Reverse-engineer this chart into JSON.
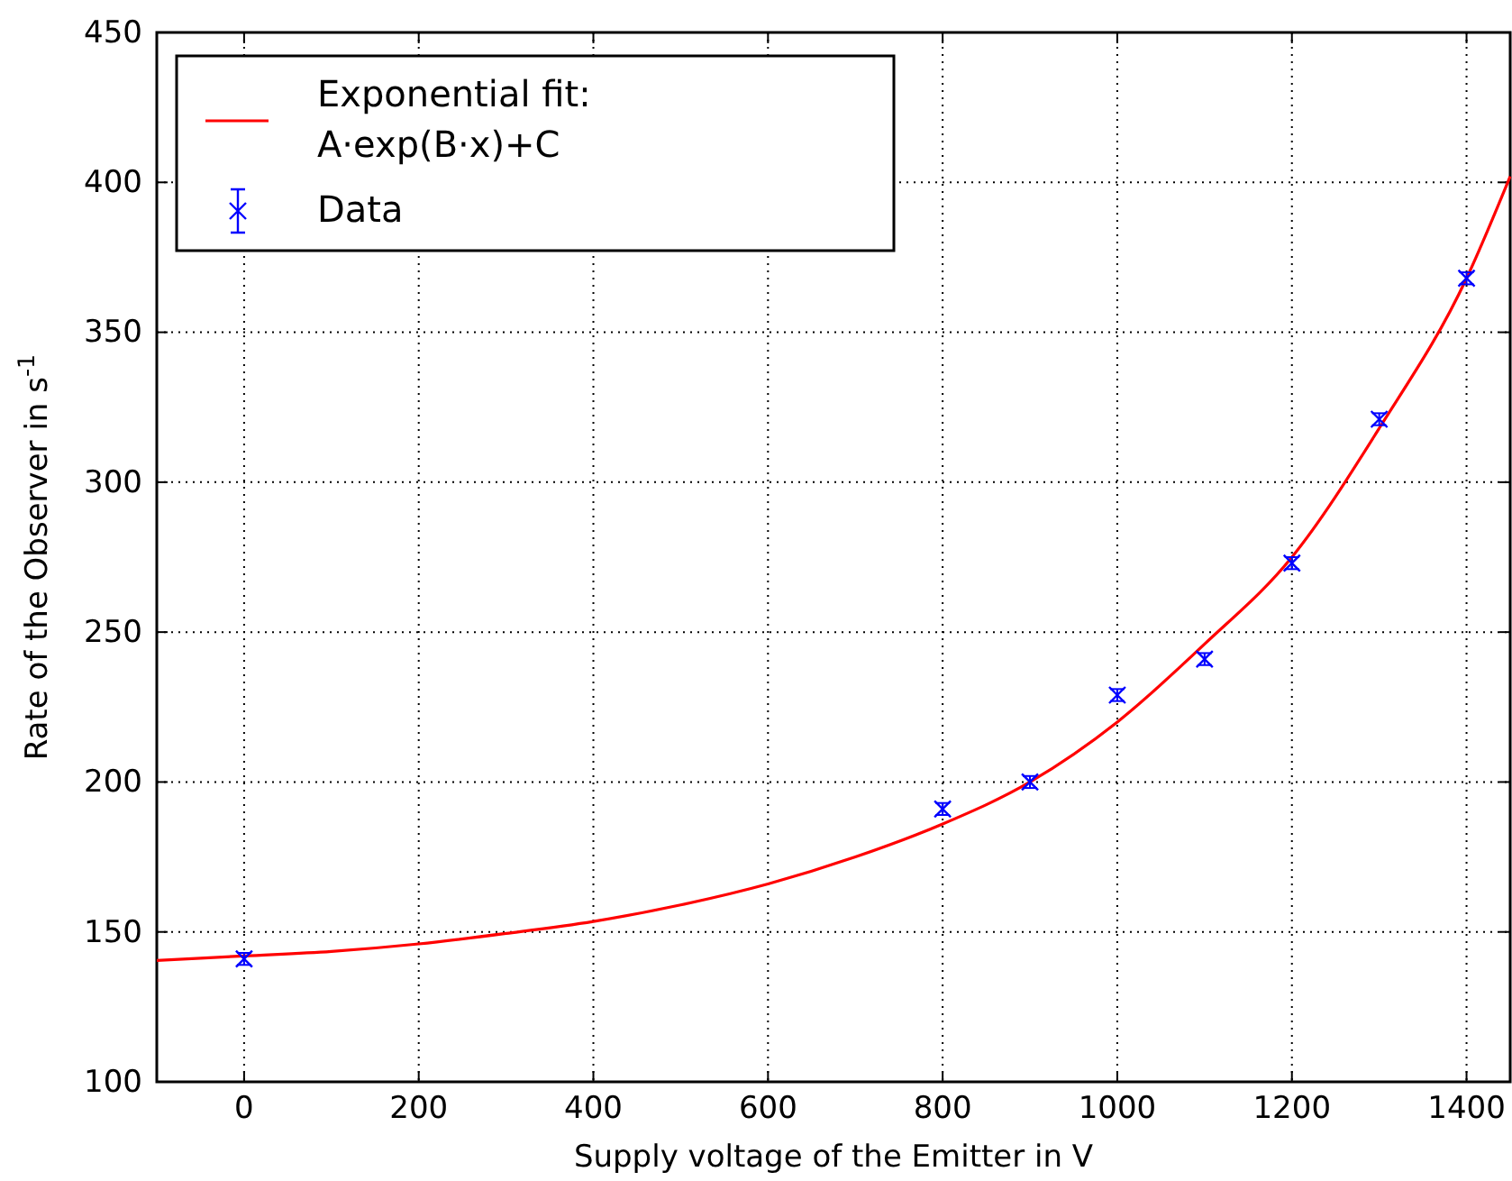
{
  "chart_data": {
    "type": "scatter",
    "xlabel": "Supply voltage of the Emitter in V",
    "ylabel": "Rate of the Observer in s$^{-1}$",
    "xlim": [
      -100,
      1450
    ],
    "xticks": [
      0,
      200,
      400,
      600,
      800,
      1000,
      1200,
      1400
    ],
    "ylim": [
      100,
      450
    ],
    "yticks": [
      100,
      150,
      200,
      250,
      300,
      350,
      400,
      450
    ],
    "grid": true,
    "legend": "top left",
    "series": [
      {
        "type": "line",
        "name": "Exponential fit:\nA·exp(B·x)+C",
        "color": "#ff0000",
        "line_style": "solid",
        "marker": "none",
        "x": [
          -100,
          0,
          100,
          200,
          300,
          400,
          500,
          600,
          700,
          800,
          900,
          1000,
          1100,
          1200,
          1300,
          1400,
          1450
        ],
        "values": [
          140.5,
          142,
          143.5,
          146,
          149.5,
          153.5,
          159,
          166,
          175,
          186,
          200,
          220,
          246,
          275,
          318,
          368,
          402
        ]
      },
      {
        "name": "Data",
        "color": "#0000ff",
        "marker": "cross",
        "x": [
          0,
          800,
          900,
          1000,
          1100,
          1200,
          1300,
          1400
        ],
        "values": [
          141,
          191,
          200,
          229,
          241,
          273,
          321,
          368
        ],
        "errors": [
          2,
          2,
          2,
          2,
          2,
          2,
          2,
          2
        ]
      }
    ]
  }
}
